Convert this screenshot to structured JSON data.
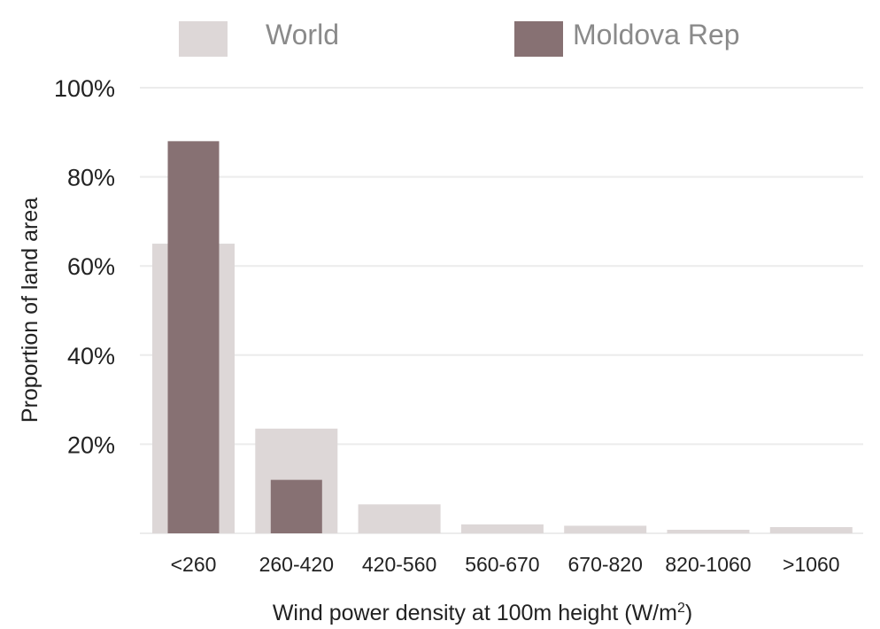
{
  "chart_data": {
    "type": "bar",
    "categories": [
      "<260",
      "260-420",
      "420-560",
      "560-670",
      "670-820",
      "820-1060",
      ">1060"
    ],
    "series": [
      {
        "name": "World",
        "values": [
          65,
          23.5,
          6.5,
          2,
          1.7,
          0.8,
          1.4
        ]
      },
      {
        "name": "Moldova Rep",
        "values": [
          88,
          12,
          0,
          0,
          0,
          0,
          0
        ]
      }
    ],
    "y_ticks": [
      "20%",
      "40%",
      "60%",
      "80%",
      "100%"
    ],
    "y_tick_values": [
      20,
      40,
      60,
      80,
      100
    ],
    "ylim": [
      0,
      100
    ],
    "xlabel_main": "Wind power density at 100m height (W/m",
    "xlabel_sup": "2",
    "xlabel_end": ")",
    "ylabel": "Proportion of land area",
    "legend_position": "top",
    "grid": true,
    "colors": {
      "World": "#ddd7d7",
      "Moldova Rep": "#877173",
      "grid": "#ececec"
    }
  }
}
